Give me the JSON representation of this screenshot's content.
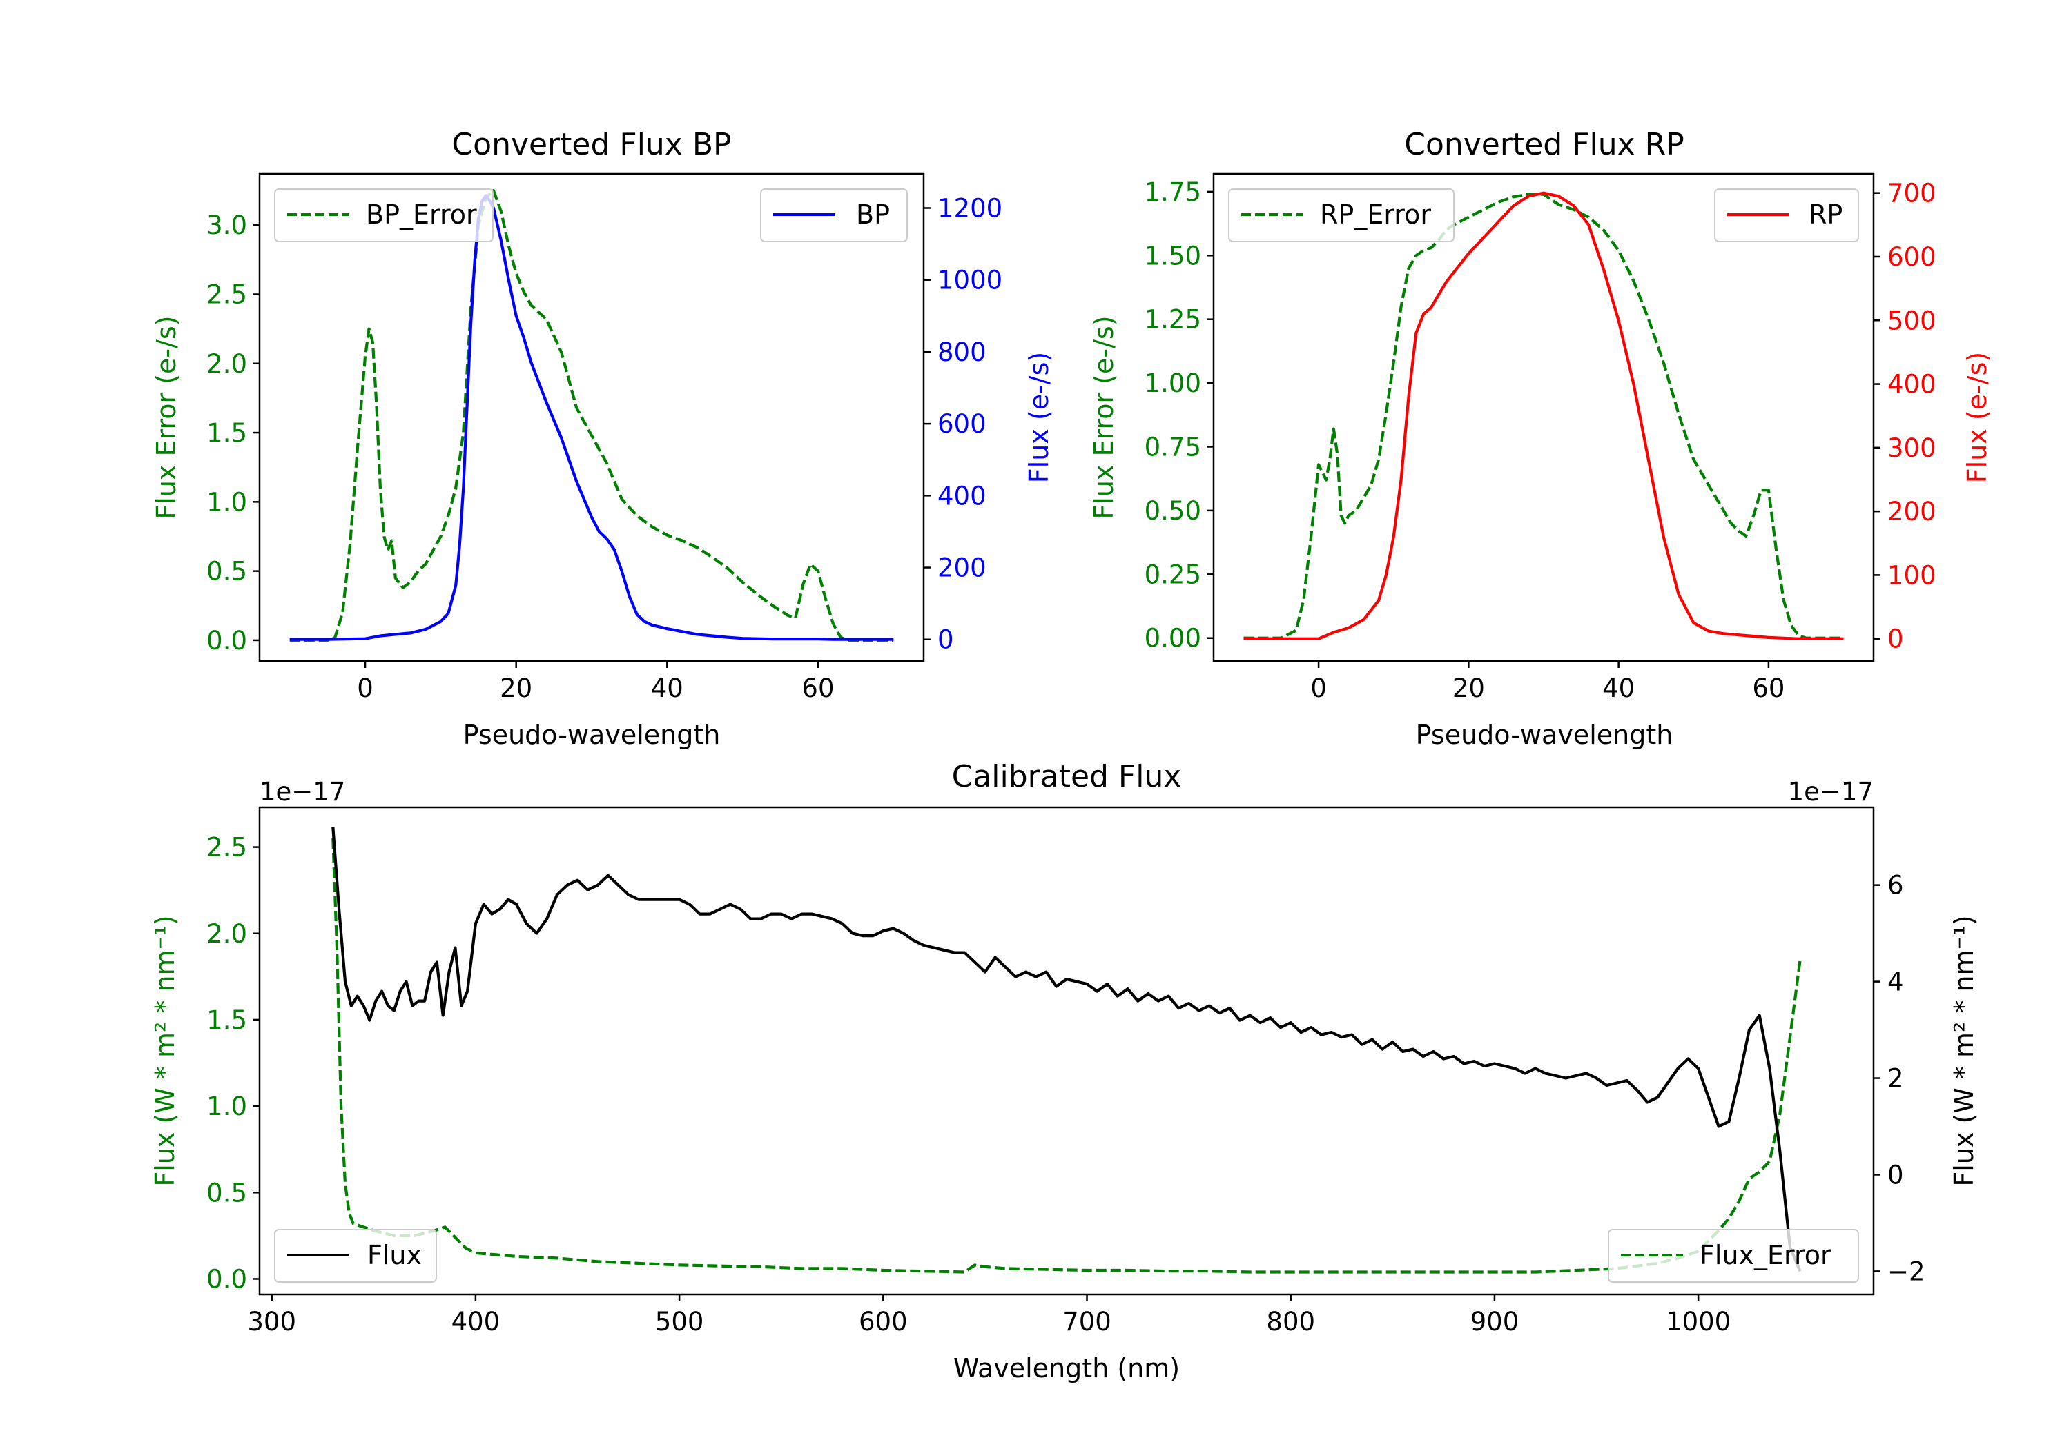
{
  "figure": {
    "colors": {
      "error": "#008000",
      "bp": "#0000ff",
      "rp": "#ff0000",
      "flux": "#000000"
    }
  },
  "chart_data": [
    {
      "type": "line",
      "title": "Converted Flux BP",
      "xlabel": "Pseudo-wavelength",
      "ylabel_left": "Flux Error (e-/s)",
      "ylabel_right": "Flux (e-/s)",
      "xlim": [
        -14,
        74
      ],
      "ylim_left": [
        -0.15,
        3.37
      ],
      "ylim_right": [
        -60,
        1295
      ],
      "xticks": [
        "0",
        "20",
        "40",
        "60"
      ],
      "yticks_left": [
        "0.0",
        "0.5",
        "1.0",
        "1.5",
        "2.0",
        "2.5",
        "3.0"
      ],
      "yticks_right": [
        "0",
        "200",
        "400",
        "600",
        "800",
        "1000",
        "1200"
      ],
      "series": [
        {
          "name": "BP_Error",
          "axis": "left",
          "style": "dashed",
          "color": "#008000",
          "x": [
            -10,
            -5,
            -4,
            -3,
            -2,
            -1,
            0,
            0.5,
            1,
            1.5,
            2,
            2.5,
            3,
            3.5,
            4,
            5,
            6,
            7,
            8,
            9,
            10,
            11,
            12,
            13,
            14,
            15,
            16,
            17,
            18,
            19,
            20,
            21,
            22,
            24,
            26,
            28,
            30,
            32,
            34,
            36,
            38,
            40,
            42,
            44,
            46,
            48,
            50,
            52,
            54,
            56,
            57,
            58,
            59,
            60,
            61,
            62,
            63,
            64,
            65,
            66,
            67,
            68,
            69,
            70
          ],
          "y": [
            0,
            0,
            0.02,
            0.2,
            0.7,
            1.4,
            2.05,
            2.25,
            2.15,
            1.7,
            1.1,
            0.75,
            0.65,
            0.72,
            0.45,
            0.38,
            0.42,
            0.5,
            0.55,
            0.65,
            0.75,
            0.9,
            1.1,
            1.5,
            2.4,
            3.0,
            3.2,
            3.25,
            3.1,
            2.85,
            2.65,
            2.52,
            2.42,
            2.32,
            2.08,
            1.68,
            1.48,
            1.28,
            1.02,
            0.9,
            0.82,
            0.76,
            0.72,
            0.67,
            0.6,
            0.52,
            0.42,
            0.33,
            0.25,
            0.18,
            0.16,
            0.4,
            0.55,
            0.5,
            0.3,
            0.12,
            0.02,
            0,
            0,
            0,
            0,
            0,
            0,
            0
          ]
        },
        {
          "name": "BP",
          "axis": "right",
          "style": "solid",
          "color": "#0000ff",
          "x": [
            -10,
            -5,
            0,
            2,
            4,
            6,
            8,
            10,
            11,
            12,
            12.5,
            13,
            13.5,
            14,
            14.5,
            15,
            15.5,
            16,
            16.5,
            17,
            18,
            19,
            20,
            21,
            22,
            24,
            26,
            28,
            30,
            31,
            32,
            33,
            34,
            35,
            36,
            37,
            38,
            40,
            42,
            44,
            46,
            48,
            50,
            52,
            54,
            56,
            58,
            60,
            62,
            64,
            66,
            68,
            70
          ],
          "y": [
            0,
            0,
            2,
            10,
            14,
            18,
            28,
            50,
            72,
            150,
            260,
            420,
            650,
            880,
            1050,
            1170,
            1220,
            1235,
            1220,
            1200,
            1110,
            1000,
            900,
            840,
            770,
            660,
            560,
            440,
            340,
            300,
            280,
            250,
            190,
            120,
            70,
            50,
            40,
            30,
            22,
            14,
            10,
            6,
            3,
            2,
            1,
            1,
            1,
            1,
            0,
            0,
            0,
            0,
            0
          ]
        },
        {
          "name": "",
          "axis": "left",
          "style": "dashed",
          "color": "#008000",
          "x": [
            0
          ],
          "y": [
            0
          ]
        }
      ],
      "legend": [
        {
          "label": "BP_Error",
          "position": "upper-left",
          "style": "dashed",
          "color": "#008000"
        },
        {
          "label": "BP",
          "position": "upper-right",
          "style": "solid",
          "color": "#0000ff"
        }
      ]
    },
    {
      "type": "line",
      "title": "Converted Flux RP",
      "xlabel": "Pseudo-wavelength",
      "ylabel_left": "Flux Error (e-/s)",
      "ylabel_right": "Flux (e-/s)",
      "xlim": [
        -14,
        74
      ],
      "ylim_left": [
        -0.09,
        1.82
      ],
      "ylim_right": [
        -35,
        730
      ],
      "xticks": [
        "0",
        "20",
        "40",
        "60"
      ],
      "yticks_left": [
        "0.00",
        "0.25",
        "0.50",
        "0.75",
        "1.00",
        "1.25",
        "1.50",
        "1.75"
      ],
      "yticks_right": [
        "0",
        "100",
        "200",
        "300",
        "400",
        "500",
        "600",
        "700"
      ],
      "series": [
        {
          "name": "RP_Error",
          "axis": "left",
          "style": "dashed",
          "color": "#008000",
          "x": [
            -10,
            -5,
            -3,
            -2,
            -1,
            0,
            1,
            1.5,
            2,
            2.5,
            3,
            3.5,
            4,
            5,
            6,
            7,
            8,
            9,
            10,
            11,
            12,
            13,
            14,
            15,
            16,
            17,
            18,
            20,
            22,
            24,
            26,
            28,
            30,
            32,
            34,
            36,
            38,
            40,
            42,
            44,
            46,
            48,
            50,
            52,
            54,
            55,
            56,
            57,
            58,
            59,
            60,
            61,
            62,
            63,
            64,
            65,
            70
          ],
          "y": [
            0,
            0,
            0.03,
            0.15,
            0.4,
            0.68,
            0.62,
            0.7,
            0.82,
            0.72,
            0.48,
            0.45,
            0.48,
            0.5,
            0.55,
            0.6,
            0.7,
            0.88,
            1.08,
            1.3,
            1.45,
            1.5,
            1.52,
            1.53,
            1.56,
            1.6,
            1.62,
            1.65,
            1.68,
            1.71,
            1.73,
            1.74,
            1.74,
            1.7,
            1.68,
            1.65,
            1.6,
            1.52,
            1.4,
            1.25,
            1.08,
            0.88,
            0.7,
            0.6,
            0.5,
            0.45,
            0.42,
            0.4,
            0.48,
            0.58,
            0.58,
            0.35,
            0.15,
            0.05,
            0.01,
            0,
            0
          ]
        },
        {
          "name": "RP",
          "axis": "right",
          "style": "solid",
          "color": "#ff0000",
          "x": [
            -10,
            -5,
            0,
            2,
            4,
            6,
            8,
            9,
            10,
            11,
            12,
            13,
            14,
            15,
            16,
            17,
            18,
            20,
            22,
            24,
            26,
            28,
            30,
            32,
            34,
            36,
            38,
            40,
            42,
            44,
            46,
            48,
            50,
            52,
            54,
            56,
            58,
            60,
            62,
            64,
            66,
            68,
            70
          ],
          "y": [
            0,
            0,
            0,
            10,
            17,
            30,
            60,
            100,
            160,
            250,
            380,
            480,
            510,
            520,
            540,
            560,
            575,
            605,
            630,
            655,
            680,
            695,
            700,
            695,
            680,
            650,
            580,
            500,
            400,
            280,
            160,
            70,
            25,
            12,
            8,
            6,
            4,
            2,
            1,
            0,
            0,
            0,
            0
          ]
        }
      ],
      "legend": [
        {
          "label": "RP_Error",
          "position": "upper-left",
          "style": "dashed",
          "color": "#008000"
        },
        {
          "label": "RP",
          "position": "upper-right",
          "style": "solid",
          "color": "#ff0000"
        }
      ]
    },
    {
      "type": "line",
      "title": "Calibrated Flux",
      "xlabel": "Wavelength (nm)",
      "ylabel_left": "Flux (W * m² * nm⁻¹)",
      "ylabel_right": "Flux (W * m² * nm⁻¹)",
      "offset_left": "1e−17",
      "offset_right": "1e−17",
      "xlim": [
        294,
        1086
      ],
      "ylim_left": [
        -0.09,
        2.73
      ],
      "ylim_right": [
        -2.48,
        7.61
      ],
      "xticks": [
        "300",
        "400",
        "500",
        "600",
        "700",
        "800",
        "900",
        "1000"
      ],
      "yticks_left": [
        "0.0",
        "0.5",
        "1.0",
        "1.5",
        "2.0",
        "2.5"
      ],
      "yticks_right": [
        "−2",
        "0",
        "2",
        "4",
        "6"
      ],
      "series": [
        {
          "name": "Flux",
          "axis": "right",
          "style": "solid",
          "color": "#000000",
          "x": [
            330,
            333,
            336,
            339,
            342,
            345,
            348,
            351,
            354,
            357,
            360,
            363,
            366,
            369,
            372,
            375,
            378,
            381,
            384,
            387,
            390,
            393,
            396,
            400,
            404,
            408,
            412,
            416,
            420,
            425,
            430,
            435,
            440,
            445,
            450,
            455,
            460,
            465,
            470,
            475,
            480,
            485,
            490,
            495,
            500,
            505,
            510,
            515,
            520,
            525,
            530,
            535,
            540,
            545,
            550,
            555,
            560,
            565,
            570,
            575,
            580,
            585,
            590,
            595,
            600,
            605,
            610,
            615,
            620,
            625,
            630,
            635,
            640,
            645,
            650,
            655,
            660,
            665,
            670,
            675,
            680,
            685,
            690,
            695,
            700,
            705,
            710,
            715,
            720,
            725,
            730,
            735,
            740,
            745,
            750,
            755,
            760,
            765,
            770,
            775,
            780,
            785,
            790,
            795,
            800,
            805,
            810,
            815,
            820,
            825,
            830,
            835,
            840,
            845,
            850,
            855,
            860,
            865,
            870,
            875,
            880,
            885,
            890,
            895,
            900,
            905,
            910,
            915,
            920,
            925,
            930,
            935,
            940,
            945,
            950,
            955,
            960,
            965,
            970,
            975,
            980,
            985,
            990,
            995,
            1000,
            1005,
            1010,
            1015,
            1020,
            1025,
            1030,
            1035,
            1040,
            1045,
            1050
          ],
          "y": [
            7.2,
            5.5,
            4.0,
            3.5,
            3.7,
            3.5,
            3.2,
            3.6,
            3.8,
            3.5,
            3.4,
            3.8,
            4.0,
            3.5,
            3.6,
            3.6,
            4.2,
            4.4,
            3.3,
            4.2,
            4.7,
            3.5,
            3.8,
            5.2,
            5.6,
            5.4,
            5.5,
            5.7,
            5.6,
            5.2,
            5.0,
            5.3,
            5.8,
            6.0,
            6.1,
            5.9,
            6.0,
            6.2,
            6.0,
            5.8,
            5.7,
            5.7,
            5.7,
            5.7,
            5.7,
            5.6,
            5.4,
            5.4,
            5.5,
            5.6,
            5.5,
            5.3,
            5.3,
            5.4,
            5.4,
            5.3,
            5.4,
            5.4,
            5.35,
            5.3,
            5.2,
            5.0,
            4.95,
            4.95,
            5.05,
            5.1,
            5.0,
            4.85,
            4.75,
            4.7,
            4.65,
            4.6,
            4.6,
            4.4,
            4.2,
            4.5,
            4.3,
            4.1,
            4.2,
            4.1,
            4.2,
            3.9,
            4.05,
            4.0,
            3.95,
            3.8,
            3.95,
            3.7,
            3.85,
            3.6,
            3.75,
            3.6,
            3.7,
            3.45,
            3.55,
            3.4,
            3.5,
            3.35,
            3.45,
            3.2,
            3.3,
            3.15,
            3.25,
            3.05,
            3.15,
            2.95,
            3.05,
            2.9,
            2.95,
            2.85,
            2.9,
            2.7,
            2.8,
            2.6,
            2.75,
            2.55,
            2.6,
            2.45,
            2.55,
            2.4,
            2.45,
            2.3,
            2.35,
            2.25,
            2.3,
            2.25,
            2.2,
            2.1,
            2.2,
            2.1,
            2.05,
            2.0,
            2.05,
            2.1,
            2.0,
            1.85,
            1.9,
            1.95,
            1.75,
            1.5,
            1.6,
            1.9,
            2.2,
            2.4,
            2.2,
            1.6,
            1.0,
            1.1,
            2.0,
            3.0,
            3.3,
            2.2,
            0.5,
            -1.5,
            -2.0
          ]
        },
        {
          "name": "Flux_Error",
          "axis": "left",
          "style": "dashed",
          "color": "#008000",
          "x": [
            330,
            332,
            334,
            336,
            338,
            340,
            345,
            350,
            360,
            370,
            380,
            385,
            390,
            395,
            400,
            410,
            420,
            440,
            460,
            480,
            500,
            520,
            540,
            560,
            580,
            600,
            620,
            640,
            645,
            650,
            660,
            680,
            700,
            720,
            740,
            760,
            780,
            800,
            820,
            840,
            860,
            880,
            900,
            920,
            940,
            960,
            980,
            990,
            1000,
            1005,
            1010,
            1015,
            1020,
            1025,
            1030,
            1035,
            1040,
            1045,
            1050
          ],
          "y": [
            2.55,
            1.9,
            1.0,
            0.55,
            0.38,
            0.32,
            0.3,
            0.28,
            0.25,
            0.25,
            0.28,
            0.3,
            0.24,
            0.18,
            0.15,
            0.14,
            0.13,
            0.12,
            0.1,
            0.09,
            0.08,
            0.075,
            0.07,
            0.06,
            0.06,
            0.05,
            0.045,
            0.04,
            0.08,
            0.07,
            0.06,
            0.055,
            0.05,
            0.05,
            0.045,
            0.045,
            0.04,
            0.04,
            0.04,
            0.04,
            0.04,
            0.04,
            0.04,
            0.04,
            0.05,
            0.06,
            0.09,
            0.12,
            0.16,
            0.22,
            0.28,
            0.35,
            0.45,
            0.58,
            0.62,
            0.68,
            0.95,
            1.4,
            1.85
          ]
        }
      ],
      "legend": [
        {
          "label": "Flux",
          "position": "lower-left",
          "style": "solid",
          "color": "#000000"
        },
        {
          "label": "Flux_Error",
          "position": "lower-right",
          "style": "dashed",
          "color": "#008000"
        }
      ]
    }
  ]
}
